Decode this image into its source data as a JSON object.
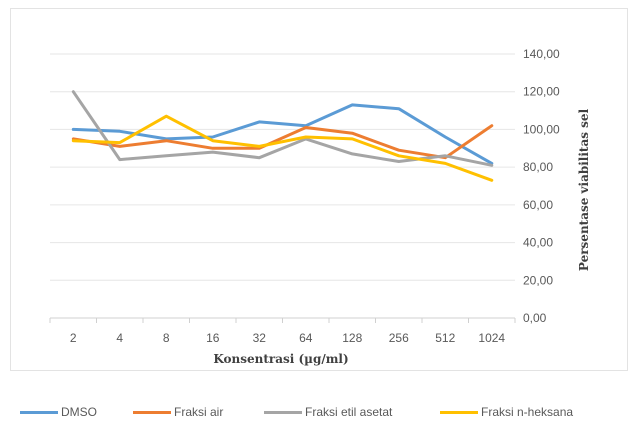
{
  "chart_data": {
    "type": "line",
    "title": "",
    "xlabel": "Konsentrasi (µg/ml)",
    "ylabel": "Persentase viabilitas sel",
    "categories": [
      "2",
      "4",
      "8",
      "16",
      "32",
      "64",
      "128",
      "256",
      "512",
      "1024"
    ],
    "ylim": [
      0,
      140
    ],
    "yticks": [
      "0,00",
      "20,00",
      "40,00",
      "60,00",
      "80,00",
      "100,00",
      "120,00",
      "140,00"
    ],
    "y_axis_position": "right",
    "grid": true,
    "legend_position": "bottom",
    "series": [
      {
        "name": "DMSO",
        "color": "#5B9BD5",
        "values": [
          100,
          99,
          95,
          96,
          104,
          102,
          113,
          111,
          96,
          82
        ]
      },
      {
        "name": "Fraksi air",
        "color": "#ED7D31",
        "values": [
          95,
          91,
          94,
          90,
          90,
          101,
          98,
          89,
          85,
          102
        ]
      },
      {
        "name": "Fraksi etil asetat",
        "color": "#A5A5A5",
        "values": [
          120,
          84,
          86,
          88,
          85,
          95,
          87,
          83,
          86,
          81
        ]
      },
      {
        "name": "Fraksi n-heksana",
        "color": "#FFC000",
        "values": [
          94,
          93,
          107,
          94,
          91,
          96,
          95,
          86,
          82,
          73
        ]
      }
    ]
  }
}
